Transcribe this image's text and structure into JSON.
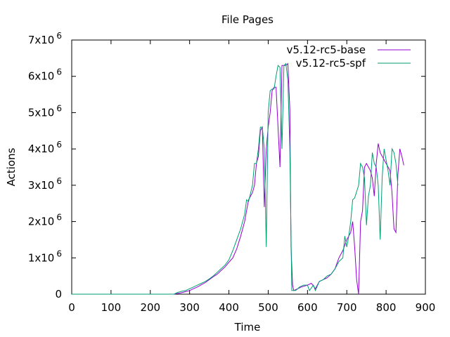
{
  "chart_data": {
    "type": "line",
    "title": "File Pages",
    "xlabel": "Time",
    "ylabel": "Actions",
    "xlim": [
      0,
      900
    ],
    "ylim": [
      0,
      7000000
    ],
    "x_ticks": [
      0,
      100,
      200,
      300,
      400,
      500,
      600,
      700,
      800,
      900
    ],
    "y_ticks": [
      {
        "value": 0,
        "mant": "0",
        "exp": ""
      },
      {
        "value": 1000000,
        "mant": "1x10",
        "exp": "6"
      },
      {
        "value": 2000000,
        "mant": "2x10",
        "exp": "6"
      },
      {
        "value": 3000000,
        "mant": "3x10",
        "exp": "6"
      },
      {
        "value": 4000000,
        "mant": "4x10",
        "exp": "6"
      },
      {
        "value": 5000000,
        "mant": "5x10",
        "exp": "6"
      },
      {
        "value": 6000000,
        "mant": "6x10",
        "exp": "6"
      },
      {
        "value": 7000000,
        "mant": "7x10",
        "exp": "6"
      }
    ],
    "grid": false,
    "legend_position": "top-right",
    "series": [
      {
        "name": "v5.12-rc5-base",
        "color": "#9400d3",
        "points": [
          [
            0,
            0
          ],
          [
            260,
            0
          ],
          [
            270,
            20000
          ],
          [
            280,
            40000
          ],
          [
            290,
            70000
          ],
          [
            300,
            100000
          ],
          [
            310,
            150000
          ],
          [
            320,
            200000
          ],
          [
            330,
            260000
          ],
          [
            340,
            320000
          ],
          [
            350,
            400000
          ],
          [
            360,
            480000
          ],
          [
            370,
            550000
          ],
          [
            380,
            650000
          ],
          [
            390,
            750000
          ],
          [
            400,
            880000
          ],
          [
            410,
            1000000
          ],
          [
            420,
            1250000
          ],
          [
            430,
            1600000
          ],
          [
            440,
            2000000
          ],
          [
            450,
            2600000
          ],
          [
            460,
            2800000
          ],
          [
            465,
            3000000
          ],
          [
            470,
            3600000
          ],
          [
            475,
            3800000
          ],
          [
            480,
            4500000
          ],
          [
            485,
            4600000
          ],
          [
            490,
            2400000
          ],
          [
            495,
            4000000
          ],
          [
            500,
            4600000
          ],
          [
            505,
            5000000
          ],
          [
            510,
            5600000
          ],
          [
            515,
            5700000
          ],
          [
            520,
            5700000
          ],
          [
            530,
            3500000
          ],
          [
            535,
            6300000
          ],
          [
            540,
            6300000
          ],
          [
            545,
            6300000
          ],
          [
            550,
            6350000
          ],
          [
            555,
            5100000
          ],
          [
            558,
            1300000
          ],
          [
            562,
            250000
          ],
          [
            565,
            100000
          ],
          [
            575,
            150000
          ],
          [
            585,
            200000
          ],
          [
            600,
            250000
          ],
          [
            610,
            300000
          ],
          [
            620,
            150000
          ],
          [
            630,
            350000
          ],
          [
            640,
            400000
          ],
          [
            650,
            450000
          ],
          [
            660,
            550000
          ],
          [
            670,
            700000
          ],
          [
            680,
            1000000
          ],
          [
            690,
            1200000
          ],
          [
            700,
            1500000
          ],
          [
            710,
            1700000
          ],
          [
            715,
            2000000
          ],
          [
            720,
            1300000
          ],
          [
            725,
            400000
          ],
          [
            730,
            0
          ],
          [
            735,
            2000000
          ],
          [
            740,
            2300000
          ],
          [
            745,
            3500000
          ],
          [
            750,
            3600000
          ],
          [
            755,
            3500000
          ],
          [
            760,
            3400000
          ],
          [
            765,
            3200000
          ],
          [
            770,
            2700000
          ],
          [
            775,
            3600000
          ],
          [
            780,
            4150000
          ],
          [
            785,
            3900000
          ],
          [
            790,
            3800000
          ],
          [
            800,
            3600000
          ],
          [
            810,
            3400000
          ],
          [
            815,
            2800000
          ],
          [
            820,
            1800000
          ],
          [
            825,
            1700000
          ],
          [
            830,
            3300000
          ],
          [
            835,
            4000000
          ],
          [
            840,
            3800000
          ],
          [
            845,
            3550000
          ]
        ]
      },
      {
        "name": "v5.12-rc5-spf",
        "color": "#009e73",
        "points": [
          [
            0,
            0
          ],
          [
            260,
            0
          ],
          [
            270,
            50000
          ],
          [
            280,
            80000
          ],
          [
            290,
            100000
          ],
          [
            300,
            150000
          ],
          [
            310,
            200000
          ],
          [
            320,
            250000
          ],
          [
            330,
            300000
          ],
          [
            340,
            350000
          ],
          [
            350,
            420000
          ],
          [
            360,
            500000
          ],
          [
            370,
            600000
          ],
          [
            380,
            700000
          ],
          [
            390,
            800000
          ],
          [
            400,
            950000
          ],
          [
            410,
            1200000
          ],
          [
            420,
            1500000
          ],
          [
            430,
            1800000
          ],
          [
            440,
            2200000
          ],
          [
            445,
            2600000
          ],
          [
            450,
            2550000
          ],
          [
            460,
            3000000
          ],
          [
            465,
            3600000
          ],
          [
            470,
            3600000
          ],
          [
            475,
            4000000
          ],
          [
            480,
            4600000
          ],
          [
            485,
            4600000
          ],
          [
            490,
            4000000
          ],
          [
            495,
            1300000
          ],
          [
            500,
            5000000
          ],
          [
            505,
            5600000
          ],
          [
            510,
            5650000
          ],
          [
            515,
            5650000
          ],
          [
            520,
            6000000
          ],
          [
            525,
            6300000
          ],
          [
            530,
            6250000
          ],
          [
            535,
            4000000
          ],
          [
            540,
            6300000
          ],
          [
            545,
            6350000
          ],
          [
            550,
            5900000
          ],
          [
            555,
            4000000
          ],
          [
            560,
            100000
          ],
          [
            570,
            100000
          ],
          [
            580,
            200000
          ],
          [
            590,
            250000
          ],
          [
            600,
            250000
          ],
          [
            605,
            100000
          ],
          [
            615,
            250000
          ],
          [
            620,
            100000
          ],
          [
            630,
            350000
          ],
          [
            640,
            400000
          ],
          [
            650,
            500000
          ],
          [
            660,
            550000
          ],
          [
            670,
            700000
          ],
          [
            680,
            900000
          ],
          [
            690,
            1000000
          ],
          [
            695,
            1600000
          ],
          [
            700,
            1300000
          ],
          [
            705,
            1600000
          ],
          [
            710,
            2000000
          ],
          [
            715,
            2600000
          ],
          [
            720,
            2650000
          ],
          [
            730,
            3000000
          ],
          [
            735,
            3600000
          ],
          [
            740,
            3500000
          ],
          [
            745,
            3200000
          ],
          [
            750,
            1900000
          ],
          [
            755,
            2700000
          ],
          [
            760,
            3000000
          ],
          [
            765,
            3900000
          ],
          [
            770,
            3600000
          ],
          [
            775,
            3500000
          ],
          [
            780,
            3000000
          ],
          [
            785,
            1500000
          ],
          [
            790,
            3200000
          ],
          [
            795,
            4000000
          ],
          [
            800,
            3700000
          ],
          [
            805,
            3400000
          ],
          [
            810,
            3000000
          ],
          [
            815,
            4000000
          ],
          [
            820,
            3900000
          ],
          [
            825,
            3600000
          ],
          [
            830,
            3000000
          ]
        ]
      }
    ]
  }
}
